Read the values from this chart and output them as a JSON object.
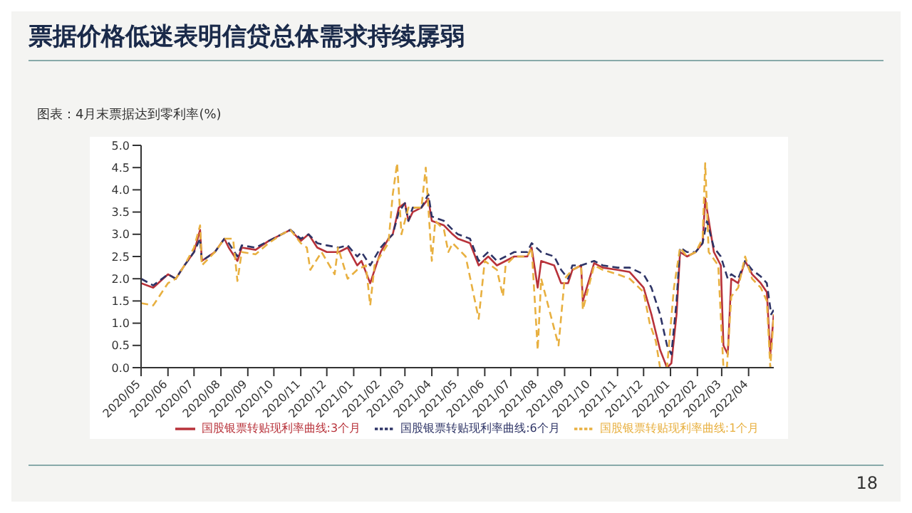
{
  "chart_data": {
    "type": "line",
    "title": "票据价格低迷表明信贷总体需求持续孱弱",
    "subtitle": "图表：4月末票据达到零利率(%)",
    "annotations": [
      "18"
    ],
    "xlim": [
      "2020-05-01",
      "2022-04-30"
    ],
    "xticks": [
      {
        "value": "2020-05",
        "label": "2020/05"
      },
      {
        "value": "2020-06",
        "label": "2020/06"
      },
      {
        "value": "2020-07",
        "label": "2020/07"
      },
      {
        "value": "2020-08",
        "label": "2020/08"
      },
      {
        "value": "2020-09",
        "label": "2020/09"
      },
      {
        "value": "2020-10",
        "label": "2020/10"
      },
      {
        "value": "2020-11",
        "label": "2020/11"
      },
      {
        "value": "2020-12",
        "label": "2020/12"
      },
      {
        "value": "2021-01",
        "label": "2021/01"
      },
      {
        "value": "2021-02",
        "label": "2021/02"
      },
      {
        "value": "2021-03",
        "label": "2021/03"
      },
      {
        "value": "2021-04",
        "label": "2021/04"
      },
      {
        "value": "2021-05",
        "label": "2021/05"
      },
      {
        "value": "2021-06",
        "label": "2021/06"
      },
      {
        "value": "2021-07",
        "label": "2021/07"
      },
      {
        "value": "2021-08",
        "label": "2021/08"
      },
      {
        "value": "2021-09",
        "label": "2021/09"
      },
      {
        "value": "2021-10",
        "label": "2021/10"
      },
      {
        "value": "2021-11",
        "label": "2021/11"
      },
      {
        "value": "2021-12",
        "label": "2021/12"
      },
      {
        "value": "2022-01",
        "label": "2022/01"
      },
      {
        "value": "2022-02",
        "label": "2022/02"
      },
      {
        "value": "2022-03",
        "label": "2022/03"
      },
      {
        "value": "2022-04",
        "label": "2022/04"
      }
    ],
    "ylim": [
      0,
      5
    ],
    "yticks": [
      {
        "value": 0,
        "label": "0.0"
      },
      {
        "value": 0.5,
        "label": "0.5"
      },
      {
        "value": 1,
        "label": "1.0"
      },
      {
        "value": 1.5,
        "label": "1.5"
      },
      {
        "value": 2,
        "label": "2.0"
      },
      {
        "value": 2.5,
        "label": "2.5"
      },
      {
        "value": 3,
        "label": "3.0"
      },
      {
        "value": 3.5,
        "label": "3.5"
      },
      {
        "value": 4,
        "label": "4.0"
      },
      {
        "value": 4.5,
        "label": "4.5"
      },
      {
        "value": 5,
        "label": "5.0"
      }
    ],
    "legend": "bottom",
    "marker": "none",
    "series": [
      {
        "name": "国股银票转贴现利率曲线:3个月",
        "color": "#b8323a",
        "line_style": "solid",
        "x": [
          "2020-05-01",
          "2020-05-15",
          "2020-06-01",
          "2020-06-10",
          "2020-06-20",
          "2020-07-01",
          "2020-07-08",
          "2020-07-10",
          "2020-07-25",
          "2020-08-05",
          "2020-08-10",
          "2020-08-20",
          "2020-08-25",
          "2020-09-10",
          "2020-09-25",
          "2020-10-10",
          "2020-10-20",
          "2020-11-01",
          "2020-11-10",
          "2020-11-20",
          "2020-12-01",
          "2020-12-15",
          "2020-12-25",
          "2021-01-05",
          "2021-01-10",
          "2021-01-20",
          "2021-02-01",
          "2021-02-10",
          "2021-02-15",
          "2021-02-22",
          "2021-03-01",
          "2021-03-05",
          "2021-03-10",
          "2021-03-20",
          "2021-03-28",
          "2021-04-01",
          "2021-04-15",
          "2021-04-25",
          "2021-05-01",
          "2021-05-15",
          "2021-05-25",
          "2021-06-05",
          "2021-06-15",
          "2021-06-25",
          "2021-07-05",
          "2021-07-20",
          "2021-07-25",
          "2021-08-01",
          "2021-08-05",
          "2021-08-20",
          "2021-08-28",
          "2021-09-05",
          "2021-09-10",
          "2021-09-20",
          "2021-09-22",
          "2021-10-05",
          "2021-10-15",
          "2021-11-01",
          "2021-11-15",
          "2021-12-01",
          "2021-12-10",
          "2021-12-20",
          "2021-12-28",
          "2022-01-02",
          "2022-01-08",
          "2022-01-12",
          "2022-01-20",
          "2022-01-30",
          "2022-02-07",
          "2022-02-10",
          "2022-02-20",
          "2022-02-28",
          "2022-03-03",
          "2022-03-08",
          "2022-03-12",
          "2022-03-20",
          "2022-03-28",
          "2022-04-05",
          "2022-04-15",
          "2022-04-22",
          "2022-04-26",
          "2022-04-30"
        ],
        "values": [
          1.9,
          1.8,
          2.1,
          2.0,
          2.3,
          2.6,
          3.1,
          2.4,
          2.6,
          2.9,
          2.7,
          2.4,
          2.7,
          2.65,
          2.85,
          3.0,
          3.1,
          2.85,
          3.0,
          2.7,
          2.6,
          2.6,
          2.7,
          2.3,
          2.4,
          1.9,
          2.6,
          2.9,
          3.0,
          3.6,
          3.7,
          3.3,
          3.5,
          3.6,
          3.8,
          3.3,
          3.2,
          3.0,
          2.9,
          2.8,
          2.3,
          2.5,
          2.3,
          2.4,
          2.5,
          2.5,
          2.7,
          1.8,
          2.4,
          2.3,
          1.9,
          1.9,
          2.2,
          2.3,
          1.5,
          2.35,
          2.25,
          2.2,
          2.15,
          1.8,
          1.2,
          0.4,
          0.0,
          0.1,
          1.2,
          2.6,
          2.5,
          2.6,
          2.8,
          3.8,
          2.6,
          2.3,
          0.5,
          0.3,
          2.0,
          1.9,
          2.4,
          2.1,
          1.9,
          1.7,
          0.3,
          1.2
        ]
      },
      {
        "name": "国股银票转贴现利率曲线:6个月",
        "color": "#2e3466",
        "line_style": "dashed",
        "x": [
          "2020-05-01",
          "2020-05-15",
          "2020-06-01",
          "2020-06-10",
          "2020-06-20",
          "2020-07-01",
          "2020-07-08",
          "2020-07-10",
          "2020-07-25",
          "2020-08-05",
          "2020-08-10",
          "2020-08-20",
          "2020-08-25",
          "2020-09-10",
          "2020-09-25",
          "2020-10-10",
          "2020-10-20",
          "2020-11-01",
          "2020-11-10",
          "2020-11-20",
          "2020-12-01",
          "2020-12-15",
          "2020-12-25",
          "2021-01-05",
          "2021-01-10",
          "2021-01-20",
          "2021-02-01",
          "2021-02-10",
          "2021-02-15",
          "2021-02-22",
          "2021-03-01",
          "2021-03-05",
          "2021-03-10",
          "2021-03-20",
          "2021-03-28",
          "2021-04-01",
          "2021-04-15",
          "2021-04-25",
          "2021-05-01",
          "2021-05-15",
          "2021-05-25",
          "2021-06-05",
          "2021-06-15",
          "2021-06-25",
          "2021-07-05",
          "2021-07-20",
          "2021-07-25",
          "2021-08-05",
          "2021-08-20",
          "2021-08-28",
          "2021-09-05",
          "2021-09-10",
          "2021-09-20",
          "2021-10-05",
          "2021-10-15",
          "2021-11-01",
          "2021-11-15",
          "2021-12-01",
          "2021-12-10",
          "2021-12-20",
          "2021-12-28",
          "2022-01-02",
          "2022-01-08",
          "2022-01-12",
          "2022-01-20",
          "2022-01-30",
          "2022-02-07",
          "2022-02-12",
          "2022-02-20",
          "2022-02-28",
          "2022-03-08",
          "2022-03-12",
          "2022-03-20",
          "2022-03-28",
          "2022-04-05",
          "2022-04-15",
          "2022-04-22",
          "2022-04-27",
          "2022-04-30"
        ],
        "values": [
          2.0,
          1.85,
          2.1,
          2.0,
          2.3,
          2.6,
          2.9,
          2.4,
          2.6,
          2.9,
          2.8,
          2.5,
          2.75,
          2.7,
          2.85,
          3.0,
          3.1,
          2.9,
          3.0,
          2.8,
          2.75,
          2.7,
          2.75,
          2.5,
          2.6,
          2.3,
          2.7,
          2.9,
          3.0,
          3.5,
          3.7,
          3.3,
          3.6,
          3.6,
          3.9,
          3.4,
          3.3,
          3.1,
          3.0,
          2.9,
          2.4,
          2.6,
          2.4,
          2.5,
          2.6,
          2.6,
          2.8,
          2.6,
          2.5,
          2.2,
          2.0,
          2.3,
          2.3,
          2.4,
          2.3,
          2.25,
          2.25,
          2.1,
          1.8,
          1.2,
          0.5,
          0.3,
          1.5,
          2.7,
          2.6,
          2.6,
          2.8,
          3.3,
          2.7,
          2.5,
          2.0,
          2.1,
          2.0,
          2.4,
          2.2,
          2.05,
          1.9,
          1.2,
          1.3
        ]
      },
      {
        "name": "国股银票转贴现利率曲线:1个月",
        "color": "#e8b040",
        "line_style": "dashed",
        "x": [
          "2020-05-01",
          "2020-05-15",
          "2020-06-01",
          "2020-06-10",
          "2020-06-20",
          "2020-07-01",
          "2020-07-08",
          "2020-07-10",
          "2020-07-25",
          "2020-08-05",
          "2020-08-15",
          "2020-08-20",
          "2020-08-25",
          "2020-09-10",
          "2020-09-25",
          "2020-10-10",
          "2020-10-20",
          "2020-11-01",
          "2020-11-08",
          "2020-11-12",
          "2020-11-25",
          "2020-12-10",
          "2020-12-14",
          "2020-12-25",
          "2021-01-05",
          "2021-01-15",
          "2021-01-20",
          "2021-01-25",
          "2021-02-10",
          "2021-02-15",
          "2021-02-20",
          "2021-02-25",
          "2021-03-05",
          "2021-03-20",
          "2021-03-25",
          "2021-04-01",
          "2021-04-05",
          "2021-04-15",
          "2021-04-20",
          "2021-04-25",
          "2021-05-10",
          "2021-05-25",
          "2021-06-01",
          "2021-06-15",
          "2021-06-22",
          "2021-06-25",
          "2021-07-05",
          "2021-07-20",
          "2021-07-25",
          "2021-08-01",
          "2021-08-05",
          "2021-08-25",
          "2021-09-01",
          "2021-09-10",
          "2021-09-20",
          "2021-09-22",
          "2021-10-05",
          "2021-10-15",
          "2021-11-01",
          "2021-11-15",
          "2021-12-01",
          "2021-12-08",
          "2021-12-15",
          "2021-12-20",
          "2021-12-28",
          "2022-01-05",
          "2022-01-12",
          "2022-01-20",
          "2022-01-30",
          "2022-02-07",
          "2022-02-10",
          "2022-02-14",
          "2022-02-25",
          "2022-03-03",
          "2022-03-07",
          "2022-03-12",
          "2022-03-20",
          "2022-03-28",
          "2022-04-05",
          "2022-04-15",
          "2022-04-22",
          "2022-04-26",
          "2022-04-30"
        ],
        "values": [
          1.45,
          1.4,
          1.9,
          2.0,
          2.3,
          2.7,
          3.2,
          2.3,
          2.6,
          2.9,
          2.9,
          1.95,
          2.6,
          2.55,
          2.8,
          3.0,
          3.1,
          2.8,
          2.7,
          2.2,
          2.6,
          2.1,
          2.7,
          2.0,
          2.2,
          2.3,
          1.4,
          2.3,
          2.8,
          3.9,
          4.6,
          3.0,
          3.6,
          3.6,
          4.5,
          2.4,
          3.3,
          3.1,
          2.6,
          2.8,
          2.5,
          1.1,
          2.4,
          2.2,
          1.6,
          2.3,
          2.5,
          2.5,
          2.7,
          0.4,
          2.0,
          0.5,
          2.0,
          2.2,
          2.3,
          1.3,
          2.3,
          2.2,
          2.1,
          2.0,
          1.7,
          1.0,
          0.6,
          0.0,
          0.0,
          1.8,
          2.7,
          2.5,
          2.6,
          2.9,
          4.6,
          2.6,
          2.3,
          0.0,
          0.0,
          1.6,
          1.8,
          2.5,
          2.0,
          1.8,
          1.5,
          0.0,
          1.2
        ]
      }
    ]
  }
}
